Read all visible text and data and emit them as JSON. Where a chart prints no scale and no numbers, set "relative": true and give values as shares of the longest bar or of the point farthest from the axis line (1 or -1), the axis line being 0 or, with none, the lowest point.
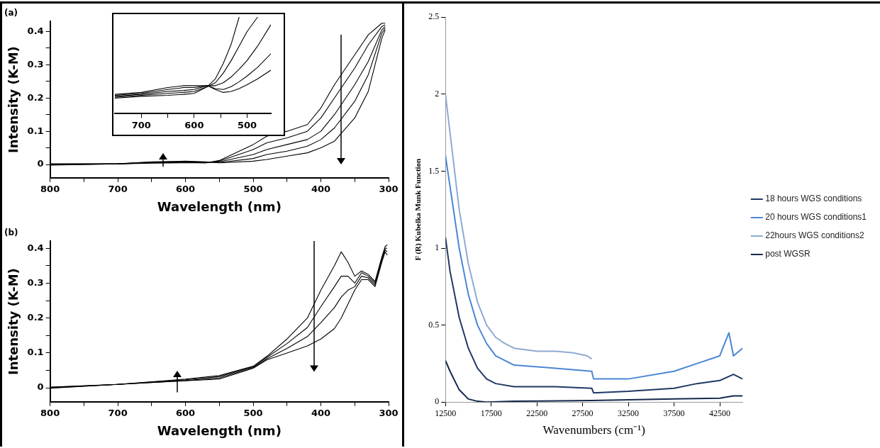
{
  "chart_data": [
    {
      "type": "line",
      "title": "(a)",
      "xlabel": "Wavelength (nm)",
      "ylabel": "Intensity (K-M)",
      "xlim": [
        800,
        300
      ],
      "ylim": [
        -0.04,
        0.43
      ],
      "xticks": [
        800,
        {
          "value": 750,
          "label": null
        },
        700,
        {
          "value": 650,
          "label": null
        },
        600,
        {
          "value": 550,
          "label": null
        },
        500,
        {
          "value": 450,
          "label": null
        },
        400,
        {
          "value": 350,
          "label": null
        },
        300
      ],
      "yticks": [
        0,
        {
          "value": 0.05,
          "label": null
        },
        0.1,
        {
          "value": 0.15,
          "label": null
        },
        0.2,
        {
          "value": 0.25,
          "label": null
        },
        0.3,
        {
          "value": 0.35,
          "label": null
        },
        0.4
      ],
      "grid": false,
      "legend": false,
      "marker": "none",
      "line_style": "solid",
      "x": [
        800,
        700,
        650,
        600,
        570,
        550,
        500,
        480,
        450,
        420,
        400,
        380,
        350,
        330,
        310,
        305
      ],
      "series": [
        {
          "color": "#000000",
          "values": [
            0.002,
            0.002,
            0.004,
            0.005,
            0.005,
            0.012,
            0.06,
            0.085,
            0.1,
            0.12,
            0.17,
            0.24,
            0.33,
            0.39,
            0.425,
            0.425
          ]
        },
        {
          "color": "#000000",
          "values": [
            0.001,
            0.002,
            0.005,
            0.006,
            0.005,
            0.01,
            0.045,
            0.065,
            0.08,
            0.1,
            0.14,
            0.2,
            0.29,
            0.36,
            0.415,
            0.42
          ]
        },
        {
          "color": "#000000",
          "values": [
            0,
            0.002,
            0.006,
            0.008,
            0.006,
            0.008,
            0.03,
            0.045,
            0.06,
            0.075,
            0.1,
            0.15,
            0.24,
            0.31,
            0.405,
            0.415
          ]
        },
        {
          "color": "#000000",
          "values": [
            -0.001,
            0.002,
            0.007,
            0.009,
            0.007,
            0.006,
            0.018,
            0.03,
            0.04,
            0.055,
            0.075,
            0.11,
            0.19,
            0.27,
            0.395,
            0.41
          ]
        },
        {
          "color": "#000000",
          "values": [
            -0.002,
            0.002,
            0.008,
            0.01,
            0.008,
            0.005,
            0.01,
            0.015,
            0.025,
            0.035,
            0.05,
            0.07,
            0.14,
            0.22,
            0.38,
            0.405
          ]
        }
      ]
    },
    {
      "type": "line",
      "relative": true,
      "tick_labels": "x",
      "xlim": [
        750,
        455
      ],
      "xticks": [
        700,
        {
          "value": 650,
          "label": null
        },
        600,
        {
          "value": 550,
          "label": null
        },
        500
      ],
      "grid": false,
      "legend": false,
      "marker": "none",
      "line_style": "solid",
      "x": [
        750,
        700,
        650,
        620,
        600,
        575,
        560,
        545,
        530,
        515,
        500,
        480,
        455
      ],
      "series": [
        {
          "color": "#000000",
          "values": [
            0.16,
            0.18,
            0.19,
            0.2,
            0.21,
            0.28,
            0.36,
            0.52,
            0.72,
            1,
            null,
            null,
            null
          ]
        },
        {
          "color": "#000000",
          "values": [
            0.17,
            0.19,
            0.21,
            0.22,
            0.23,
            0.28,
            0.32,
            0.42,
            0.55,
            0.7,
            0.85,
            1,
            null
          ]
        },
        {
          "color": "#000000",
          "values": [
            0.18,
            0.2,
            0.23,
            0.24,
            0.25,
            0.29,
            0.29,
            0.32,
            0.38,
            0.46,
            0.55,
            0.7,
            0.92
          ]
        },
        {
          "color": "#000000",
          "values": [
            0.19,
            0.21,
            0.25,
            0.27,
            0.27,
            0.29,
            0.26,
            0.25,
            0.28,
            0.33,
            0.39,
            0.48,
            0.62
          ]
        },
        {
          "color": "#000000",
          "values": [
            0.2,
            0.22,
            0.27,
            0.29,
            0.29,
            0.29,
            0.25,
            0.22,
            0.23,
            0.26,
            0.3,
            0.36,
            0.45
          ]
        }
      ]
    },
    {
      "type": "line",
      "title": "(b)",
      "xlabel": "Wavelength (nm)",
      "ylabel": "Intensity (K-M)",
      "xlim": [
        800,
        300
      ],
      "ylim": [
        -0.04,
        0.42
      ],
      "xticks": [
        800,
        {
          "value": 750,
          "label": null
        },
        700,
        {
          "value": 650,
          "label": null
        },
        600,
        {
          "value": 550,
          "label": null
        },
        500,
        {
          "value": 450,
          "label": null
        },
        400,
        {
          "value": 350,
          "label": null
        },
        300
      ],
      "yticks": [
        0,
        {
          "value": 0.05,
          "label": null
        },
        0.1,
        {
          "value": 0.15,
          "label": null
        },
        0.2,
        {
          "value": 0.25,
          "label": null
        },
        0.3,
        {
          "value": 0.35,
          "label": null
        },
        0.4
      ],
      "grid": false,
      "legend": false,
      "marker": "none",
      "line_style": "solid",
      "x": [
        800,
        700,
        600,
        550,
        500,
        480,
        450,
        420,
        400,
        380,
        370,
        360,
        350,
        340,
        330,
        320,
        310,
        305,
        302
      ],
      "series": [
        {
          "color": "#000000",
          "values": [
            0.002,
            0.01,
            0.025,
            0.035,
            0.062,
            0.09,
            0.14,
            0.2,
            0.28,
            0.35,
            0.39,
            0.36,
            0.32,
            0.335,
            0.325,
            0.305,
            0.375,
            0.405,
            0.41
          ]
        },
        {
          "color": "#000000",
          "values": [
            0.001,
            0.01,
            0.023,
            0.032,
            0.06,
            0.087,
            0.127,
            0.173,
            0.233,
            0.29,
            0.32,
            0.32,
            0.3,
            0.33,
            0.32,
            0.3,
            0.37,
            0.4,
            0.4
          ]
        },
        {
          "color": "#000000",
          "values": [
            0,
            0.01,
            0.021,
            0.028,
            0.058,
            0.083,
            0.113,
            0.147,
            0.187,
            0.23,
            0.26,
            0.28,
            0.29,
            0.32,
            0.315,
            0.295,
            0.365,
            0.395,
            0.39
          ]
        },
        {
          "color": "#000000",
          "values": [
            -0.001,
            0.01,
            0.02,
            0.025,
            0.056,
            0.08,
            0.1,
            0.12,
            0.14,
            0.17,
            0.2,
            0.24,
            0.28,
            0.31,
            0.31,
            0.29,
            0.36,
            0.39,
            0.38
          ]
        }
      ]
    },
    {
      "type": "line",
      "xlabel": "Wavenumbers (cm⁻¹)",
      "ylabel": "F (R) Kubelka Munk Function",
      "xlim": [
        12500,
        45000
      ],
      "ylim": [
        0,
        2.5
      ],
      "xticks": [
        12500,
        17500,
        22500,
        27500,
        32500,
        37500,
        42500
      ],
      "yticks": [
        0,
        0.5,
        1,
        1.5,
        2,
        2.5
      ],
      "grid": false,
      "legend": "right",
      "marker": "none",
      "line_style": "solid",
      "series": [
        {
          "name": "18 hours WGS conditions",
          "color": "#203864",
          "x": [
            12500,
            13000,
            14000,
            15000,
            16000,
            17000,
            18000,
            20000,
            24500,
            28500,
            28700,
            32500,
            37500,
            40000,
            42500,
            44000,
            45000
          ],
          "values": [
            1.07,
            0.85,
            0.55,
            0.35,
            0.22,
            0.15,
            0.12,
            0.1,
            0.1,
            0.09,
            0.06,
            0.07,
            0.09,
            0.12,
            0.14,
            0.18,
            0.15
          ]
        },
        {
          "name": "20 hours WGS conditions1",
          "color": "#4a86d4",
          "x": [
            12500,
            13000,
            14000,
            15000,
            16000,
            17000,
            18000,
            20000,
            24500,
            28500,
            28700,
            32500,
            37500,
            40000,
            42500,
            43500,
            44000,
            45000
          ],
          "values": [
            1.6,
            1.4,
            1.0,
            0.7,
            0.5,
            0.38,
            0.3,
            0.24,
            0.22,
            0.2,
            0.15,
            0.15,
            0.2,
            0.25,
            0.3,
            0.45,
            0.3,
            0.35
          ]
        },
        {
          "name": "22hours WGS conditions2",
          "color": "#8eaad2",
          "x": [
            12500,
            13000,
            14000,
            15000,
            16000,
            17000,
            18000,
            19000,
            20000,
            22500,
            24500,
            26500,
            28000,
            28500
          ],
          "values": [
            2.0,
            1.75,
            1.25,
            0.9,
            0.65,
            0.5,
            0.42,
            0.38,
            0.35,
            0.33,
            0.33,
            0.32,
            0.3,
            0.28
          ]
        },
        {
          "name": "post WGSR",
          "color": "#14284b",
          "x": [
            12500,
            13000,
            14000,
            15000,
            16000,
            17000,
            20000,
            28500,
            32500,
            37500,
            42500,
            44000,
            45000
          ],
          "values": [
            0.27,
            0.2,
            0.08,
            0.02,
            0.005,
            0,
            0.005,
            0.01,
            0.015,
            0.02,
            0.025,
            0.04,
            0.04
          ]
        }
      ]
    }
  ]
}
